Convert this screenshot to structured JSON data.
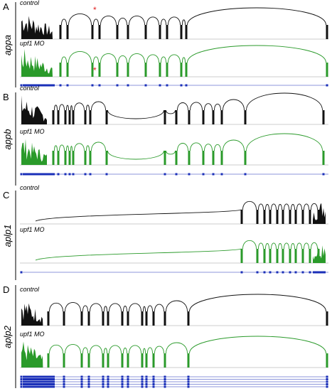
{
  "panels": [
    {
      "letter": "A",
      "gene": "appa",
      "control": "control",
      "treatment": "upf1 MO",
      "marks": [
        "*",
        "*"
      ]
    },
    {
      "letter": "B",
      "gene": "appb",
      "control": "control",
      "treatment": "upf1 MO"
    },
    {
      "letter": "C",
      "gene": "aplp1",
      "control": "control",
      "treatment": "upf1 MO"
    },
    {
      "letter": "D",
      "gene": "aplp2",
      "control": "control",
      "treatment": "upf1 MO"
    }
  ]
}
